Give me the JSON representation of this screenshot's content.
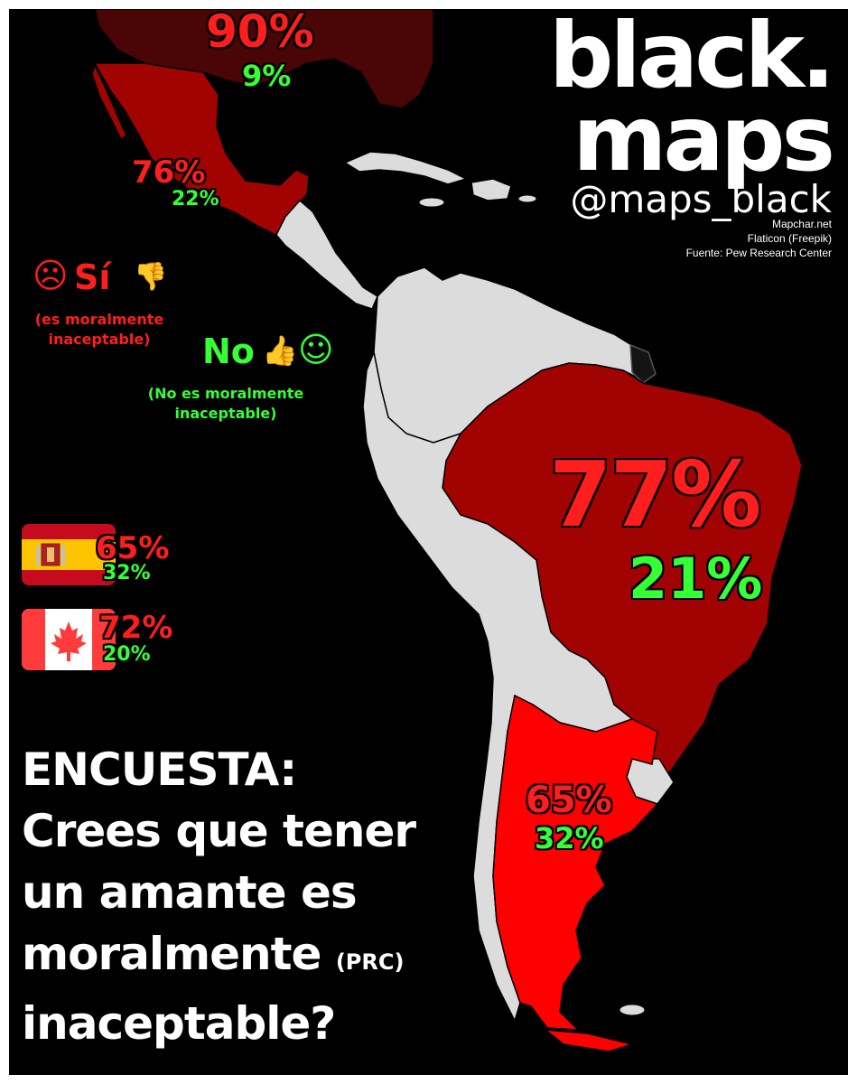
{
  "brand": {
    "title_line1": "black.",
    "title_line2": "maps",
    "handle": "@maps_black"
  },
  "credits": [
    "Mapchar.net",
    "Flaticon (Freepik)",
    "Fuente: Pew Research Center"
  ],
  "legend": {
    "yes_label": "Sí",
    "yes_note_line1": "(es moralmente",
    "yes_note_line2": "inaceptable)",
    "no_label": "No",
    "no_note_line1": "(No es moralmente",
    "no_note_line2": "inaceptable)",
    "yes_icons": [
      "angry-face-icon",
      "thumbs-down-icon"
    ],
    "no_icons": [
      "thumbs-up-icon",
      "smiley-face-icon"
    ]
  },
  "colors": {
    "yes": "#ff1e1e",
    "no": "#35ff35",
    "usa": "#4a0606",
    "mexico_brazil": "#a10303",
    "argentina": "#ff0000",
    "other_countries": "#dcdcdc",
    "background": "#000000"
  },
  "survey": {
    "usa": {
      "yes": "90%",
      "no": "9%"
    },
    "mexico": {
      "yes": "76%",
      "no": "22%"
    },
    "brazil": {
      "yes": "77%",
      "no": "21%"
    },
    "argentina": {
      "yes": "65%",
      "no": "32%"
    },
    "spain": {
      "yes": "65%",
      "no": "32%",
      "flag": "spain-flag-icon"
    },
    "canada": {
      "yes": "72%",
      "no": "20%",
      "flag": "canada-flag-icon"
    }
  },
  "question": {
    "line1": "ENCUESTA:",
    "line2": "Crees que tener",
    "line3": "un amante es",
    "line4": "moralmente",
    "tag": "(PRC)",
    "line5": "inaceptable?"
  }
}
